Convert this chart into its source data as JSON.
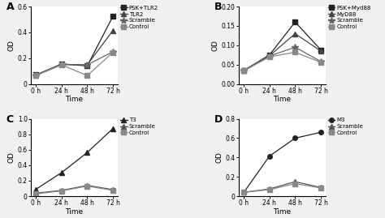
{
  "time_labels": [
    "0 h",
    "24 h",
    "48 h",
    "72 h"
  ],
  "time_vals": [
    0,
    1,
    2,
    3
  ],
  "panel_A": {
    "title": "A",
    "ylabel": "OD",
    "xlabel": "Time",
    "ylim": [
      0.0,
      0.6
    ],
    "yticks": [
      0.0,
      0.2,
      0.4,
      0.6
    ],
    "yticklabels": [
      "0",
      "0.2",
      "0.4",
      "0.6"
    ],
    "series": [
      {
        "label": "PSK+TLR2",
        "data": [
          0.07,
          0.155,
          0.14,
          0.525
        ],
        "marker": "s",
        "color": "#222222"
      },
      {
        "label": "TLR2",
        "data": [
          0.068,
          0.152,
          0.148,
          0.415
        ],
        "marker": "^",
        "color": "#444444"
      },
      {
        "label": "Scramble",
        "data": [
          0.068,
          0.15,
          0.148,
          0.25
        ],
        "marker": "*",
        "color": "#666666"
      },
      {
        "label": "Control",
        "data": [
          0.065,
          0.148,
          0.065,
          0.245
        ],
        "marker": "s",
        "color": "#888888"
      }
    ]
  },
  "panel_B": {
    "title": "B",
    "ylabel": "OD",
    "xlabel": "Time",
    "ylim": [
      0.0,
      0.2
    ],
    "yticks": [
      0.0,
      0.05,
      0.1,
      0.15,
      0.2
    ],
    "yticklabels": [
      "0.00",
      "0.05",
      "0.10",
      "0.15",
      "0.20"
    ],
    "series": [
      {
        "label": "PSK+Myd88",
        "data": [
          0.035,
          0.075,
          0.16,
          0.088
        ],
        "marker": "s",
        "color": "#222222"
      },
      {
        "label": "MyD88",
        "data": [
          0.034,
          0.073,
          0.13,
          0.085
        ],
        "marker": "^",
        "color": "#444444"
      },
      {
        "label": "Scramble",
        "data": [
          0.034,
          0.072,
          0.095,
          0.058
        ],
        "marker": "*",
        "color": "#666666"
      },
      {
        "label": "Control",
        "data": [
          0.034,
          0.07,
          0.082,
          0.056
        ],
        "marker": "s",
        "color": "#888888"
      }
    ]
  },
  "panel_C": {
    "title": "C",
    "ylabel": "OD",
    "xlabel": "Time",
    "ylim": [
      0.0,
      1.0
    ],
    "yticks": [
      0.0,
      0.2,
      0.4,
      0.6,
      0.8,
      1.0
    ],
    "yticklabels": [
      "0",
      "0.2",
      "0.4",
      "0.6",
      "0.8",
      "1.0"
    ],
    "series": [
      {
        "label": "T3",
        "data": [
          0.09,
          0.305,
          0.565,
          0.875
        ],
        "marker": "^",
        "color": "#222222"
      },
      {
        "label": "Scramble",
        "data": [
          0.04,
          0.075,
          0.14,
          0.085
        ],
        "marker": "^",
        "color": "#555555"
      },
      {
        "label": "Control",
        "data": [
          0.03,
          0.068,
          0.13,
          0.075
        ],
        "marker": "s",
        "color": "#888888"
      }
    ]
  },
  "panel_D": {
    "title": "D",
    "ylabel": "OD",
    "xlabel": "Time",
    "ylim": [
      0.0,
      0.8
    ],
    "yticks": [
      0.0,
      0.2,
      0.4,
      0.6,
      0.8
    ],
    "yticklabels": [
      "0",
      "0.2",
      "0.4",
      "0.6",
      "0.8"
    ],
    "series": [
      {
        "label": "M3",
        "data": [
          0.04,
          0.415,
          0.6,
          0.66
        ],
        "marker": "o",
        "color": "#222222"
      },
      {
        "label": "Scramble",
        "data": [
          0.04,
          0.075,
          0.15,
          0.09
        ],
        "marker": "^",
        "color": "#555555"
      },
      {
        "label": "Control",
        "data": [
          0.04,
          0.068,
          0.13,
          0.085
        ],
        "marker": "s",
        "color": "#888888"
      }
    ]
  },
  "bg_color": "#f0f0f0",
  "plot_bg": "#ffffff"
}
